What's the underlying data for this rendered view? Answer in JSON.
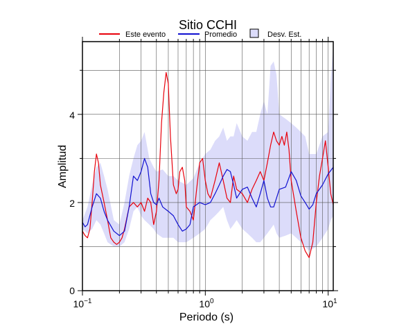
{
  "chart_data": {
    "type": "line",
    "title": "Sitio CCHI",
    "xlabel": "Periodo (s)",
    "ylabel": "Amplitud",
    "xscale": "log",
    "xlim": [
      0.1,
      11
    ],
    "ylim": [
      0,
      5.65
    ],
    "x_ticks": [
      {
        "value": 0.1,
        "base": "10",
        "exp": "−1"
      },
      {
        "value": 1,
        "base": "10",
        "exp": "0"
      },
      {
        "value": 10,
        "base": "10",
        "exp": "1"
      }
    ],
    "y_ticks": [
      0,
      2,
      4
    ],
    "grid": true,
    "legend_position": "top",
    "legend": {
      "series1_label": "Este evento",
      "series2_label": "Promedio",
      "band_label": "Desv. Est."
    },
    "colors": {
      "evento": "#e8000b",
      "promedio": "#1010d0",
      "band": "#dcdcfa",
      "grid": "#555555"
    },
    "series": [
      {
        "name": "Este evento",
        "x": [
          0.1,
          0.105,
          0.11,
          0.115,
          0.12,
          0.125,
          0.13,
          0.135,
          0.14,
          0.15,
          0.16,
          0.17,
          0.18,
          0.19,
          0.2,
          0.21,
          0.22,
          0.24,
          0.26,
          0.28,
          0.3,
          0.32,
          0.34,
          0.36,
          0.38,
          0.4,
          0.42,
          0.44,
          0.46,
          0.48,
          0.5,
          0.52,
          0.55,
          0.58,
          0.6,
          0.62,
          0.65,
          0.68,
          0.7,
          0.75,
          0.8,
          0.85,
          0.9,
          0.95,
          1.0,
          1.05,
          1.1,
          1.2,
          1.3,
          1.4,
          1.5,
          1.6,
          1.7,
          1.8,
          2.0,
          2.2,
          2.4,
          2.6,
          2.8,
          3.0,
          3.2,
          3.4,
          3.6,
          3.8,
          4.0,
          4.2,
          4.4,
          4.6,
          4.8,
          5.0,
          5.5,
          6.0,
          6.5,
          7.0,
          7.5,
          8.0,
          8.5,
          9.0,
          9.5,
          10.0,
          10.5,
          11.0
        ],
        "values": [
          1.35,
          1.25,
          1.2,
          1.4,
          2.0,
          2.7,
          3.1,
          2.9,
          2.4,
          2.0,
          1.6,
          1.2,
          1.1,
          1.05,
          1.1,
          1.2,
          1.4,
          1.9,
          2.0,
          1.9,
          2.0,
          1.8,
          2.1,
          2.0,
          1.5,
          1.8,
          2.5,
          3.8,
          4.5,
          4.95,
          4.7,
          3.5,
          2.4,
          2.2,
          2.3,
          2.7,
          2.8,
          2.5,
          1.9,
          1.8,
          1.6,
          2.3,
          2.9,
          3.0,
          2.5,
          2.2,
          2.1,
          2.5,
          2.9,
          2.5,
          2.1,
          2.0,
          2.6,
          2.3,
          2.2,
          2.0,
          2.3,
          2.5,
          2.7,
          2.5,
          2.9,
          3.3,
          3.6,
          3.4,
          3.3,
          3.5,
          3.3,
          3.6,
          3.2,
          2.5,
          1.8,
          1.2,
          0.9,
          0.75,
          1.1,
          2.0,
          2.6,
          3.0,
          3.4,
          2.8,
          2.2,
          1.95
        ]
      },
      {
        "name": "Promedio",
        "x": [
          0.1,
          0.105,
          0.11,
          0.12,
          0.13,
          0.14,
          0.15,
          0.16,
          0.18,
          0.2,
          0.22,
          0.24,
          0.26,
          0.28,
          0.3,
          0.32,
          0.34,
          0.36,
          0.38,
          0.4,
          0.42,
          0.45,
          0.5,
          0.55,
          0.6,
          0.65,
          0.7,
          0.75,
          0.8,
          0.9,
          1.0,
          1.1,
          1.2,
          1.3,
          1.4,
          1.5,
          1.6,
          1.7,
          1.8,
          2.0,
          2.2,
          2.4,
          2.6,
          2.8,
          3.0,
          3.2,
          3.4,
          3.6,
          3.8,
          4.0,
          4.5,
          5.0,
          5.5,
          6.0,
          6.5,
          7.0,
          7.5,
          8.0,
          9.0,
          10.0,
          11.0
        ],
        "values": [
          1.55,
          1.45,
          1.5,
          1.9,
          2.2,
          2.1,
          1.8,
          1.6,
          1.35,
          1.25,
          1.35,
          1.9,
          2.6,
          2.5,
          2.7,
          3.0,
          2.8,
          2.2,
          2.0,
          1.95,
          2.1,
          1.9,
          1.8,
          1.7,
          1.5,
          1.35,
          1.4,
          1.5,
          1.9,
          2.0,
          1.95,
          2.0,
          2.2,
          2.4,
          2.6,
          2.75,
          2.7,
          2.4,
          2.1,
          2.3,
          2.35,
          2.1,
          1.9,
          2.2,
          2.5,
          2.1,
          1.9,
          1.9,
          2.1,
          2.3,
          2.35,
          2.7,
          2.5,
          2.15,
          2.0,
          1.85,
          1.95,
          2.2,
          2.4,
          2.65,
          2.8
        ]
      }
    ],
    "std_band": {
      "name": "Desv. Est.",
      "x": [
        0.1,
        0.11,
        0.12,
        0.13,
        0.14,
        0.15,
        0.16,
        0.18,
        0.2,
        0.22,
        0.24,
        0.26,
        0.28,
        0.3,
        0.32,
        0.35,
        0.38,
        0.4,
        0.45,
        0.5,
        0.55,
        0.6,
        0.7,
        0.8,
        0.9,
        1.0,
        1.1,
        1.2,
        1.3,
        1.4,
        1.5,
        1.6,
        1.7,
        1.8,
        2.0,
        2.2,
        2.4,
        2.6,
        2.8,
        3.0,
        3.2,
        3.4,
        3.6,
        3.8,
        4.0,
        4.5,
        5.0,
        5.5,
        6.0,
        6.5,
        7.0,
        8.0,
        9.0,
        10.0,
        10.5,
        11.0
      ],
      "upper": [
        1.6,
        1.9,
        2.4,
        2.8,
        2.9,
        2.6,
        2.3,
        1.6,
        1.5,
        2.0,
        2.6,
        3.0,
        3.3,
        3.4,
        3.6,
        3.0,
        2.8,
        2.7,
        2.75,
        2.6,
        2.6,
        2.5,
        2.4,
        2.55,
        2.9,
        3.1,
        3.2,
        3.4,
        3.5,
        3.7,
        3.4,
        3.5,
        3.5,
        3.8,
        3.5,
        3.4,
        3.6,
        3.6,
        4.0,
        4.3,
        4.0,
        5.1,
        5.2,
        4.9,
        4.0,
        3.9,
        3.8,
        3.7,
        3.6,
        3.5,
        3.1,
        3.1,
        3.5,
        3.6,
        4.8,
        5.6
      ],
      "lower": [
        1.4,
        1.3,
        1.4,
        1.6,
        1.5,
        1.3,
        1.1,
        1.0,
        1.0,
        1.1,
        1.4,
        1.8,
        1.9,
        1.7,
        1.6,
        1.5,
        1.4,
        1.3,
        1.2,
        1.2,
        1.2,
        1.1,
        1.1,
        1.2,
        1.3,
        1.4,
        1.6,
        1.7,
        1.8,
        1.9,
        1.6,
        1.4,
        1.5,
        1.6,
        1.4,
        1.3,
        1.2,
        1.1,
        1.1,
        1.2,
        1.3,
        1.4,
        1.5,
        1.3,
        1.2,
        1.25,
        1.3,
        1.2,
        1.1,
        1.0,
        0.9,
        1.0,
        1.2,
        1.4,
        1.6,
        1.7
      ]
    }
  }
}
